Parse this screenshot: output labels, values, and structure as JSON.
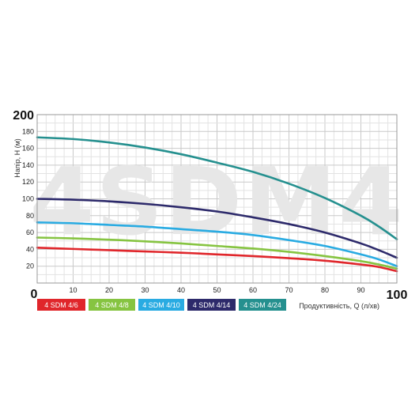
{
  "chart_data": {
    "type": "line",
    "watermark": "4SDM4",
    "ylabel": "Напір, H (м)",
    "xlabel": "Продуктивність, Q (л/хв)",
    "xlim": [
      0,
      100
    ],
    "ylim": [
      0,
      200
    ],
    "x_ticks": [
      10,
      20,
      30,
      40,
      50,
      60,
      70,
      80,
      90
    ],
    "x_tick_labels": [
      "10",
      "20",
      "30",
      "40",
      "50",
      "60",
      "70",
      "80",
      "90"
    ],
    "x_min_label": "0",
    "x_max_label": "100",
    "y_ticks": [
      20,
      40,
      60,
      80,
      100,
      120,
      140,
      160,
      180
    ],
    "y_tick_labels": [
      "20",
      "40",
      "60",
      "80",
      "100",
      "120",
      "140",
      "160",
      "180"
    ],
    "y_max_label": "200",
    "grid": true,
    "legend_position": "bottom",
    "series": [
      {
        "name": "4 SDM 4/6",
        "color": "#e0262b",
        "x": [
          0,
          10,
          20,
          30,
          40,
          50,
          60,
          70,
          80,
          90,
          95,
          100
        ],
        "y": [
          42,
          40.5,
          39,
          37.5,
          36,
          34,
          32,
          29.5,
          26.5,
          22,
          19,
          14
        ]
      },
      {
        "name": "4 SDM 4/8",
        "color": "#86c441",
        "x": [
          0,
          10,
          20,
          30,
          40,
          50,
          60,
          70,
          80,
          90,
          95,
          100
        ],
        "y": [
          54,
          53,
          51.5,
          49.5,
          47,
          44,
          41,
          37,
          32,
          26,
          22,
          17
        ]
      },
      {
        "name": "4 SDM 4/10",
        "color": "#29abe2",
        "x": [
          0,
          10,
          20,
          30,
          40,
          50,
          60,
          70,
          80,
          90,
          95,
          100
        ],
        "y": [
          72,
          71,
          69,
          67,
          64,
          61,
          57,
          51,
          44,
          34,
          28,
          20
        ]
      },
      {
        "name": "4 SDM 4/14",
        "color": "#2d2a6b",
        "x": [
          0,
          10,
          20,
          30,
          40,
          50,
          60,
          70,
          80,
          90,
          95,
          100
        ],
        "y": [
          100,
          99,
          97,
          94,
          90,
          85,
          78,
          70,
          60,
          47,
          39,
          30
        ]
      },
      {
        "name": "4 SDM 4/24",
        "color": "#25908f",
        "x": [
          0,
          10,
          20,
          30,
          40,
          50,
          60,
          70,
          80,
          90,
          95,
          100
        ],
        "y": [
          173,
          171,
          167,
          161,
          153,
          143,
          132,
          118,
          101,
          80,
          67,
          52
        ]
      }
    ]
  }
}
